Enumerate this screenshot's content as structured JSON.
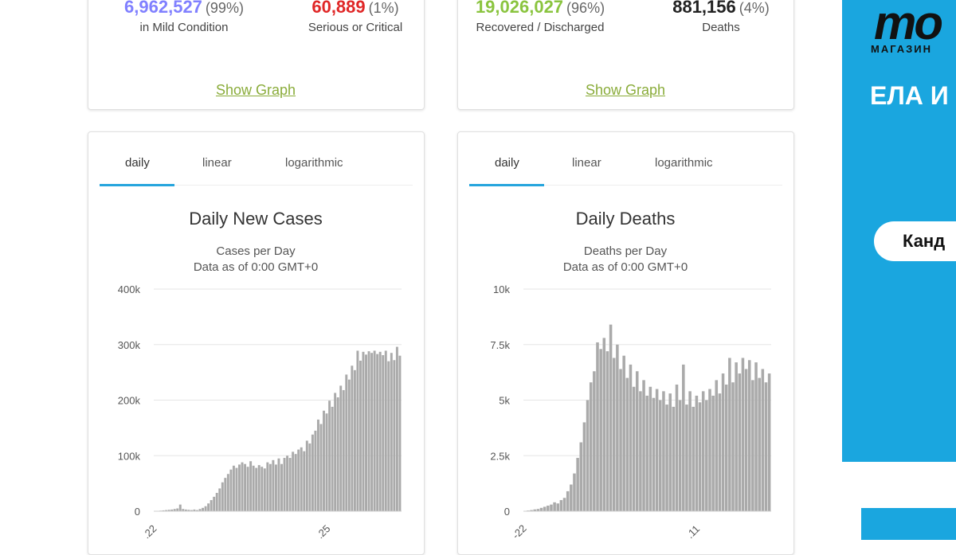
{
  "top_cards": [
    {
      "stats": [
        {
          "value": "6,962,527",
          "pct": "(99%)",
          "label": "in Mild Condition",
          "color": "#8080ff"
        },
        {
          "value": "60,889",
          "pct": "(1%)",
          "label": "Serious or Critical",
          "color": "#e02727"
        }
      ],
      "link": "Show Graph"
    },
    {
      "stats": [
        {
          "value": "19,026,027",
          "pct": "(96%)",
          "label": "Recovered / Discharged",
          "color": "#8ac43f"
        },
        {
          "value": "881,156",
          "pct": "(4%)",
          "label": "Deaths",
          "color": "#222222"
        }
      ],
      "link": "Show Graph"
    }
  ],
  "chart_cards": [
    {
      "tabs": [
        "daily",
        "linear",
        "logarithmic"
      ],
      "active_tab": 0
    },
    {
      "tabs": [
        "daily",
        "linear",
        "logarithmic"
      ],
      "active_tab": 0
    }
  ],
  "chart_data": [
    {
      "type": "bar",
      "title": "Daily New Cases",
      "subtitle": "Cases per Day",
      "subtitle2": "Data as of 0:00 GMT+0",
      "ylim": [
        0,
        400000
      ],
      "yticks": [
        0,
        100000,
        200000,
        300000,
        400000
      ],
      "yticklabels": [
        "0",
        "100k",
        "200k",
        "300k",
        "400k"
      ],
      "xticklabels": [
        ".22",
        ".25"
      ],
      "color": "#aaaaaa",
      "grid": true,
      "values": [
        0,
        500,
        1000,
        1500,
        2000,
        2500,
        3000,
        4000,
        5000,
        12000,
        4000,
        3000,
        2500,
        2000,
        3000,
        2000,
        4000,
        6000,
        9000,
        14000,
        20000,
        26000,
        33000,
        41000,
        52000,
        60000,
        67000,
        75000,
        82000,
        78000,
        84000,
        88000,
        85000,
        80000,
        90000,
        82000,
        78000,
        83000,
        80000,
        77000,
        88000,
        85000,
        92000,
        84000,
        95000,
        85000,
        96000,
        100000,
        96000,
        107000,
        103000,
        111000,
        115000,
        108000,
        127000,
        122000,
        138000,
        145000,
        165000,
        157000,
        181000,
        176000,
        199000,
        188000,
        213000,
        205000,
        226000,
        218000,
        246000,
        237000,
        262000,
        254000,
        289000,
        271000,
        287000,
        282000,
        288000,
        285000,
        289000,
        283000,
        287000,
        281000,
        289000,
        270000,
        285000,
        272000,
        296000,
        280000
      ]
    },
    {
      "type": "bar",
      "title": "Daily Deaths",
      "subtitle": "Deaths per Day",
      "subtitle2": "Data as of 0:00 GMT+0",
      "ylim": [
        0,
        10000
      ],
      "yticks": [
        0,
        2500,
        5000,
        7500,
        10000
      ],
      "yticklabels": [
        "0",
        "2.5k",
        "5k",
        "7.5k",
        "10k"
      ],
      "xticklabels": [
        "-22",
        ".11"
      ],
      "color": "#aaaaaa",
      "grid": true,
      "values": [
        0,
        30,
        50,
        80,
        100,
        150,
        200,
        250,
        300,
        400,
        350,
        500,
        600,
        900,
        1200,
        1700,
        2400,
        3100,
        4000,
        5000,
        5800,
        6300,
        7600,
        7300,
        7800,
        7200,
        8400,
        6900,
        7500,
        6400,
        7000,
        6000,
        6600,
        5600,
        6300,
        5400,
        5900,
        5200,
        5600,
        5100,
        5500,
        5000,
        5400,
        4800,
        5300,
        4700,
        5700,
        5000,
        6600,
        4800,
        5400,
        4700,
        5200,
        4900,
        5400,
        5000,
        5500,
        5200,
        5900,
        5300,
        6200,
        5700,
        6900,
        5800,
        6700,
        6200,
        6900,
        6400,
        6800,
        5900,
        6700,
        6000,
        6400,
        5800,
        6200
      ]
    }
  ],
  "ad": {
    "line1": "ЕЛА И",
    "line2": "МАГАЗИН",
    "button": "Канд"
  }
}
